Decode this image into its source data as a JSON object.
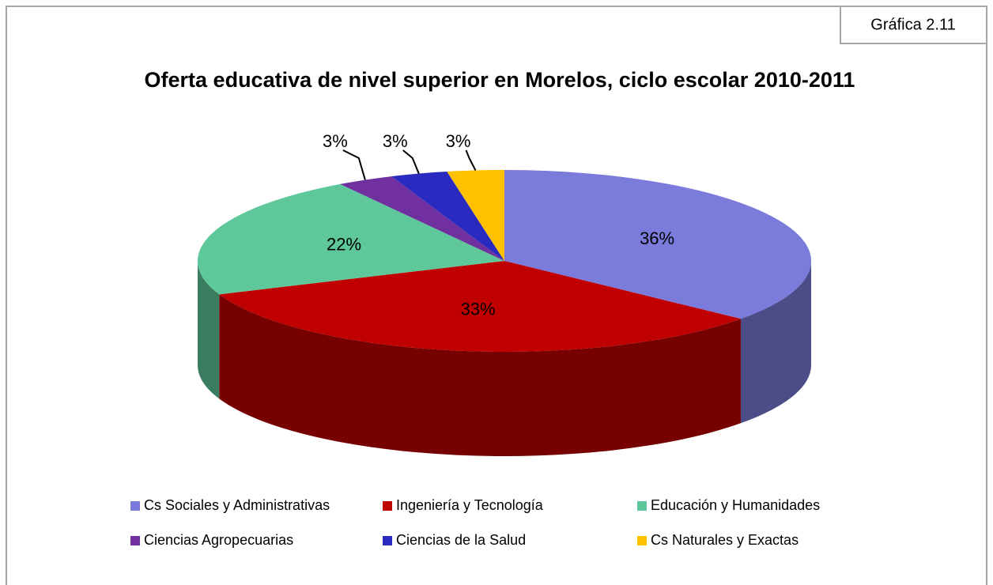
{
  "chart_data": {
    "type": "pie",
    "badge": "Gráfica 2.11",
    "title": "Oferta educativa de nivel superior en Morelos, ciclo escolar 2010-2011",
    "categories": [
      "Cs Sociales y Administrativas",
      "Ingeniería y Tecnología",
      "Educación y Humanidades",
      "Ciencias Agropecuarias",
      "Ciencias de la Salud",
      "Cs Naturales y Exactas"
    ],
    "values": [
      36,
      33,
      22,
      3,
      3,
      3
    ],
    "value_labels": [
      "36%",
      "33%",
      "22%",
      "3%",
      "3%",
      "3%"
    ],
    "colors": [
      "#7b7bdc",
      "#c00000",
      "#5ec89a",
      "#7030a0",
      "#2a2ac0",
      "#ffc000"
    ],
    "legend": "bottom"
  }
}
